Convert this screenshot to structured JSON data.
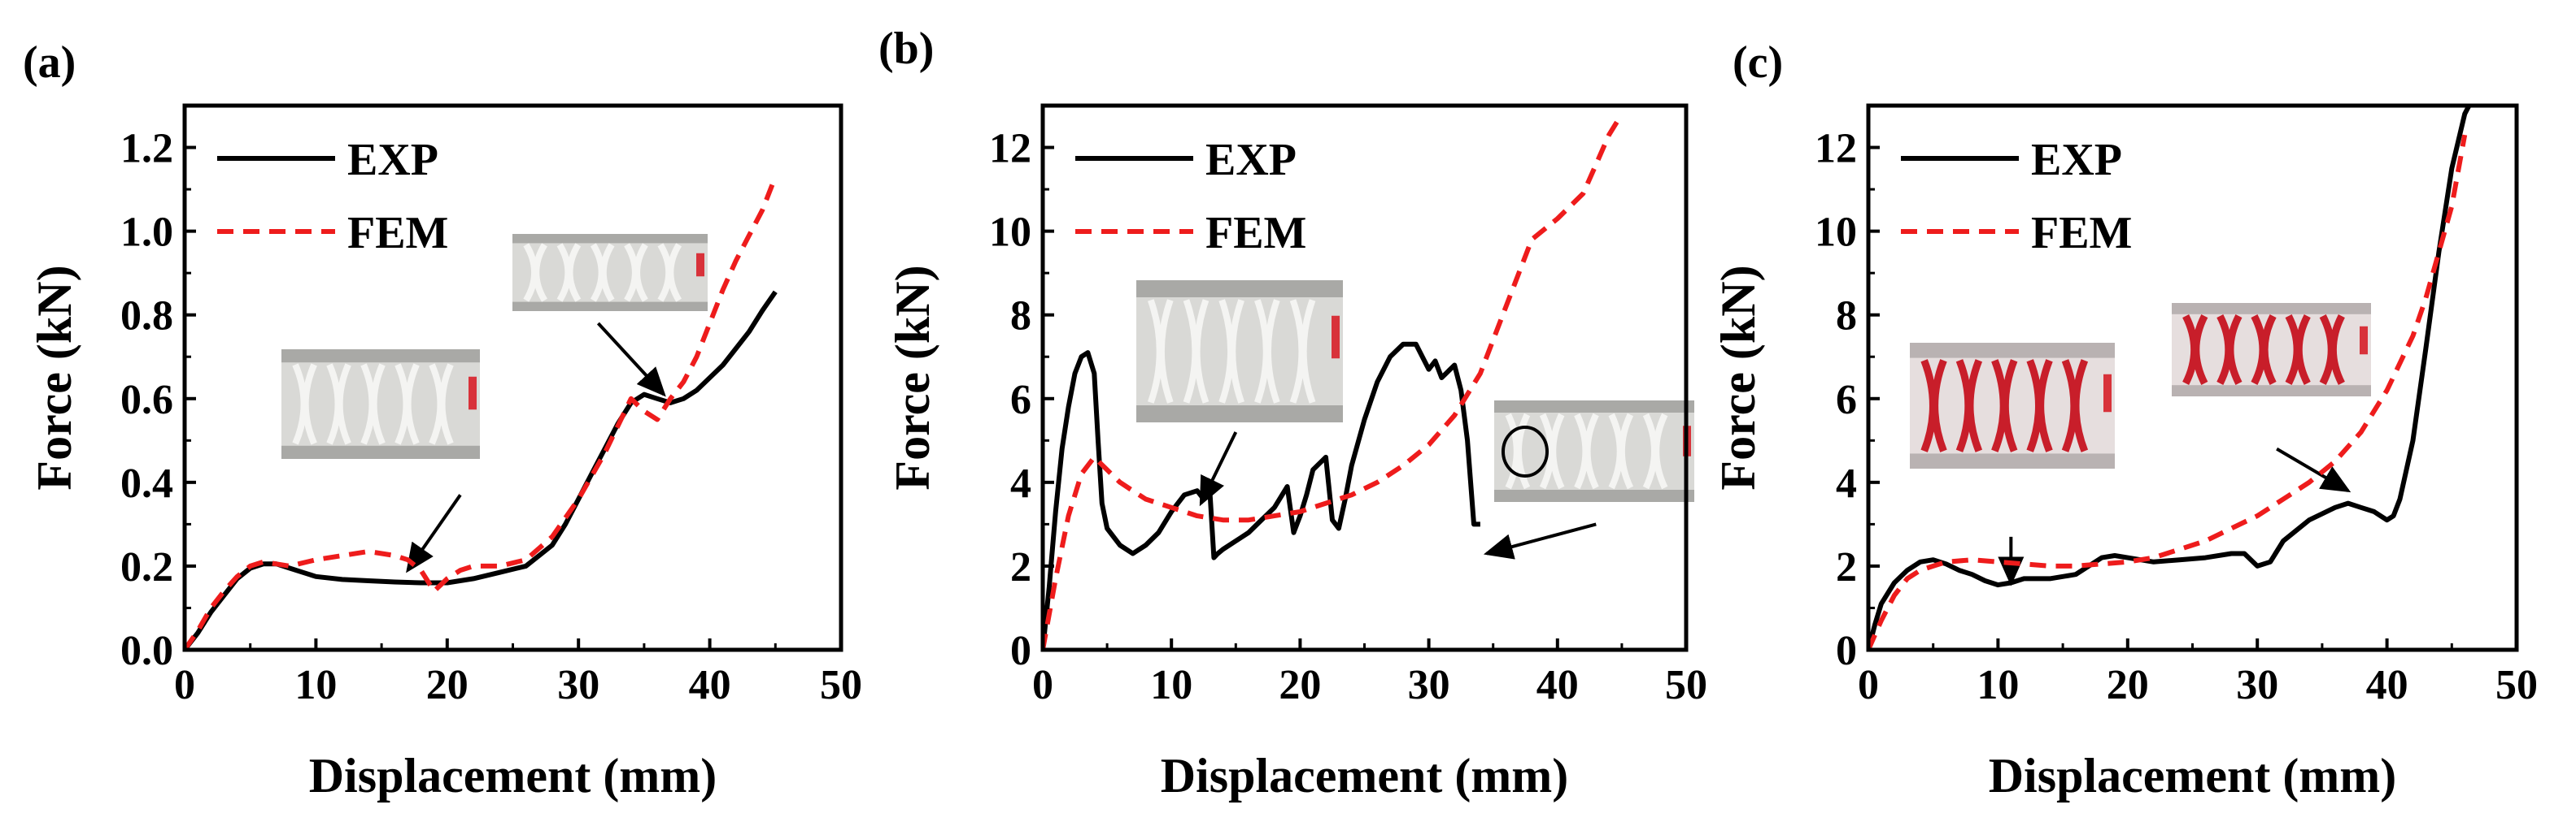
{
  "figure": {
    "colors": {
      "exp": "#000000",
      "fem": "#ee1c1c",
      "axis": "#000000"
    }
  },
  "chart_data": [
    {
      "type": "line",
      "panel_label": "(a)",
      "xlabel": "Displacement (mm)",
      "ylabel": "Force (kN)",
      "xlim": [
        0,
        50
      ],
      "ylim": [
        0,
        1.3
      ],
      "x_ticks": [
        0,
        10,
        20,
        30,
        40,
        50
      ],
      "x_tick_labels": [
        "0",
        "10",
        "20",
        "30",
        "40",
        "50"
      ],
      "y_ticks": [
        0,
        0.2,
        0.4,
        0.6,
        0.8,
        1.0,
        1.2
      ],
      "y_tick_labels": [
        "0.0",
        "0.2",
        "0.4",
        "0.6",
        "0.8",
        "1.0",
        "1.2"
      ],
      "legend": [
        "EXP",
        "FEM"
      ],
      "series": [
        {
          "name": "EXP",
          "style": "solid",
          "x": [
            0,
            1,
            2,
            3,
            4,
            5,
            6,
            7,
            8,
            9,
            10,
            12,
            14,
            16,
            18,
            20,
            22,
            24,
            26,
            28,
            29,
            30,
            31,
            32,
            33,
            34,
            35,
            36,
            37,
            38,
            39,
            40,
            41,
            42,
            43,
            44,
            45
          ],
          "y": [
            0,
            0.04,
            0.09,
            0.13,
            0.17,
            0.195,
            0.205,
            0.205,
            0.195,
            0.185,
            0.175,
            0.168,
            0.165,
            0.162,
            0.16,
            0.16,
            0.17,
            0.185,
            0.2,
            0.25,
            0.3,
            0.36,
            0.42,
            0.48,
            0.54,
            0.59,
            0.61,
            0.6,
            0.59,
            0.6,
            0.62,
            0.65,
            0.68,
            0.72,
            0.76,
            0.81,
            0.855
          ]
        },
        {
          "name": "FEM",
          "style": "dashed",
          "x": [
            0,
            1,
            2,
            3,
            4,
            5,
            6,
            7,
            8,
            10,
            12,
            14,
            16,
            17,
            18,
            19,
            20,
            21,
            22,
            24,
            26,
            28,
            30,
            32,
            34,
            35,
            36,
            37,
            38,
            39,
            40,
            41,
            42,
            43,
            44,
            45
          ],
          "y": [
            0,
            0.045,
            0.1,
            0.14,
            0.175,
            0.2,
            0.21,
            0.205,
            0.2,
            0.215,
            0.225,
            0.235,
            0.225,
            0.215,
            0.19,
            0.14,
            0.17,
            0.19,
            0.2,
            0.2,
            0.215,
            0.27,
            0.36,
            0.47,
            0.6,
            0.57,
            0.55,
            0.6,
            0.64,
            0.7,
            0.78,
            0.86,
            0.93,
            0.99,
            1.05,
            1.13
          ]
        }
      ],
      "annotations": [
        {
          "photo": "white",
          "arrow_from": [
            21,
            0.37
          ],
          "arrow_to": [
            17,
            0.19
          ]
        },
        {
          "photo": "white",
          "arrow_from": [
            31.5,
            0.78
          ],
          "arrow_to": [
            36.5,
            0.61
          ]
        }
      ]
    },
    {
      "type": "line",
      "panel_label": "(b)",
      "xlabel": "Displacement (mm)",
      "ylabel": "Force (kN)",
      "xlim": [
        0,
        50
      ],
      "ylim": [
        0,
        13
      ],
      "x_ticks": [
        0,
        10,
        20,
        30,
        40,
        50
      ],
      "x_tick_labels": [
        "0",
        "10",
        "20",
        "30",
        "40",
        "50"
      ],
      "y_ticks": [
        0,
        2,
        4,
        6,
        8,
        10,
        12
      ],
      "y_tick_labels": [
        "0",
        "2",
        "4",
        "6",
        "8",
        "10",
        "12"
      ],
      "legend": [
        "EXP",
        "FEM"
      ],
      "series": [
        {
          "name": "EXP",
          "style": "solid",
          "x": [
            0,
            0.5,
            1,
            1.5,
            2,
            2.5,
            3,
            3.5,
            4,
            4.3,
            4.6,
            5,
            6,
            7,
            8,
            9,
            10,
            11,
            12,
            12.5,
            13,
            13.3,
            13.6,
            14,
            15,
            16,
            17,
            18,
            19,
            19.5,
            20,
            20.5,
            21,
            22,
            22.5,
            23,
            23.5,
            24,
            25,
            26,
            27,
            28,
            29,
            30,
            30.5,
            31,
            32,
            32.5,
            33,
            33.5,
            34
          ],
          "y": [
            0,
            1.5,
            3.3,
            4.8,
            5.8,
            6.6,
            7.0,
            7.1,
            6.6,
            5.0,
            3.5,
            2.9,
            2.5,
            2.3,
            2.5,
            2.8,
            3.3,
            3.7,
            3.8,
            3.6,
            3.7,
            2.2,
            2.3,
            2.4,
            2.6,
            2.8,
            3.1,
            3.4,
            3.9,
            2.8,
            3.2,
            3.7,
            4.3,
            4.6,
            3.1,
            2.9,
            3.6,
            4.4,
            5.5,
            6.4,
            7.0,
            7.3,
            7.3,
            6.7,
            6.9,
            6.5,
            6.8,
            6.2,
            5.0,
            3.0,
            3.0
          ]
        },
        {
          "name": "FEM",
          "style": "dashed",
          "x": [
            0,
            1,
            2,
            3,
            4,
            5,
            6,
            7,
            8,
            10,
            12,
            14,
            16,
            18,
            20,
            22,
            24,
            26,
            28,
            30,
            32,
            34,
            36,
            38,
            40,
            42,
            43,
            44,
            45
          ],
          "y": [
            0,
            1.7,
            3.2,
            4.2,
            4.6,
            4.3,
            4.0,
            3.8,
            3.6,
            3.4,
            3.2,
            3.1,
            3.1,
            3.2,
            3.3,
            3.5,
            3.7,
            4.0,
            4.4,
            4.9,
            5.6,
            6.6,
            8.2,
            9.8,
            10.3,
            10.9,
            11.6,
            12.3,
            12.8
          ]
        }
      ],
      "annotations": [
        {
          "photo": "white",
          "arrow_from": [
            15,
            5.2
          ],
          "arrow_to": [
            12.3,
            3.5
          ]
        },
        {
          "photo": "white",
          "arrow_from": [
            43,
            3.0
          ],
          "arrow_to": [
            34.5,
            2.3
          ]
        }
      ]
    },
    {
      "type": "line",
      "panel_label": "(c)",
      "xlabel": "Displacement (mm)",
      "ylabel": "Force (kN)",
      "xlim": [
        0,
        50
      ],
      "ylim": [
        0,
        13
      ],
      "x_ticks": [
        0,
        10,
        20,
        30,
        40,
        50
      ],
      "x_tick_labels": [
        "0",
        "10",
        "20",
        "30",
        "40",
        "50"
      ],
      "y_ticks": [
        0,
        2,
        4,
        6,
        8,
        10,
        12
      ],
      "y_tick_labels": [
        "0",
        "2",
        "4",
        "6",
        "8",
        "10",
        "12"
      ],
      "legend": [
        "EXP",
        "FEM"
      ],
      "series": [
        {
          "name": "EXP",
          "style": "solid",
          "x": [
            0,
            0.5,
            1,
            2,
            3,
            4,
            5,
            6,
            7,
            8,
            9,
            10,
            11,
            12,
            14,
            16,
            18,
            19,
            20,
            22,
            24,
            26,
            28,
            29,
            30,
            31,
            32,
            34,
            36,
            37,
            38,
            39,
            40,
            40.5,
            41,
            42,
            43,
            44,
            45,
            46,
            46.5
          ],
          "y": [
            0,
            0.6,
            1.1,
            1.6,
            1.9,
            2.1,
            2.15,
            2.05,
            1.9,
            1.8,
            1.65,
            1.55,
            1.6,
            1.7,
            1.7,
            1.8,
            2.2,
            2.25,
            2.2,
            2.1,
            2.15,
            2.2,
            2.3,
            2.3,
            2.0,
            2.1,
            2.6,
            3.1,
            3.4,
            3.5,
            3.4,
            3.3,
            3.1,
            3.2,
            3.6,
            5.0,
            7.2,
            9.5,
            11.5,
            12.8,
            13.1
          ]
        },
        {
          "name": "FEM",
          "style": "dashed",
          "x": [
            0,
            1,
            2,
            3,
            4,
            5,
            6,
            8,
            10,
            12,
            14,
            16,
            18,
            20,
            22,
            24,
            26,
            28,
            30,
            32,
            34,
            36,
            38,
            40,
            42,
            43,
            44,
            45,
            46
          ],
          "y": [
            0,
            0.7,
            1.3,
            1.7,
            1.9,
            2.0,
            2.1,
            2.15,
            2.1,
            2.05,
            2.0,
            2.0,
            2.05,
            2.1,
            2.2,
            2.4,
            2.6,
            2.9,
            3.2,
            3.6,
            4.0,
            4.5,
            5.2,
            6.2,
            7.5,
            8.4,
            9.5,
            10.6,
            12.3
          ]
        }
      ],
      "annotations": [
        {
          "photo": "red",
          "arrow_from": [
            11,
            2.7
          ],
          "arrow_to": [
            11,
            1.6
          ]
        },
        {
          "photo": "red",
          "arrow_from": [
            31.5,
            4.8
          ],
          "arrow_to": [
            37,
            3.8
          ]
        }
      ]
    }
  ]
}
